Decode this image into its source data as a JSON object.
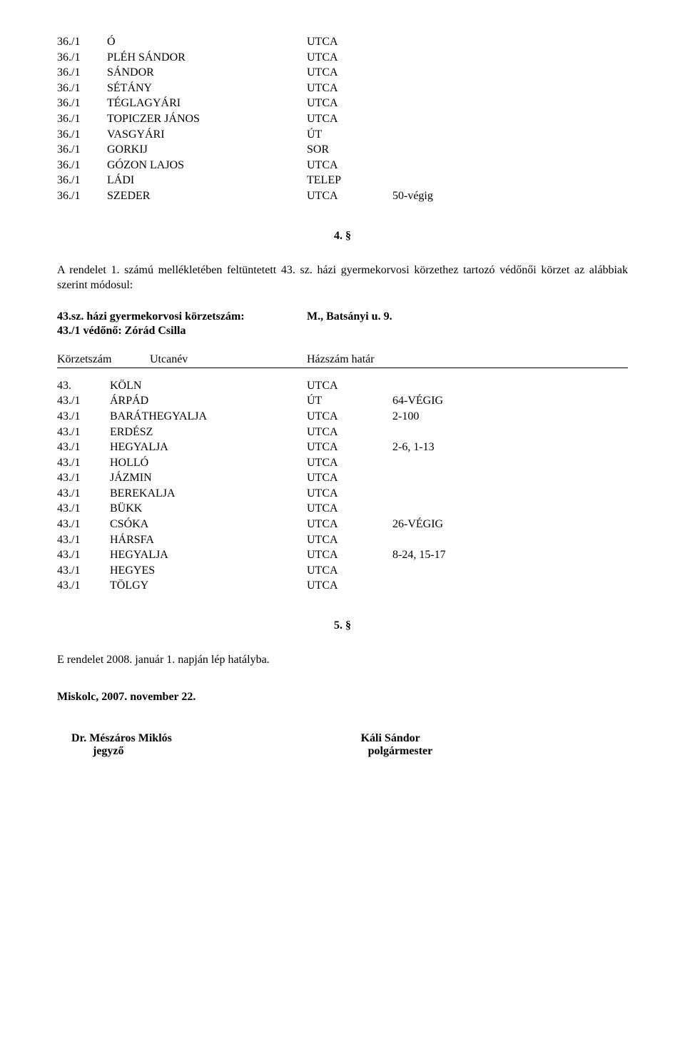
{
  "table1": {
    "rows": [
      {
        "code": "36./1",
        "name": "Ó",
        "type": "UTCA",
        "range": ""
      },
      {
        "code": "36./1",
        "name": "PLÉH SÁNDOR",
        "type": "UTCA",
        "range": ""
      },
      {
        "code": "36./1",
        "name": "SÁNDOR",
        "type": "UTCA",
        "range": ""
      },
      {
        "code": "36./1",
        "name": "SÉTÁNY",
        "type": "UTCA",
        "range": ""
      },
      {
        "code": "36./1",
        "name": "TÉGLAGYÁRI",
        "type": "UTCA",
        "range": ""
      },
      {
        "code": "36./1",
        "name": "TOPICZER JÁNOS",
        "type": "UTCA",
        "range": ""
      },
      {
        "code": "36./1",
        "name": "VASGYÁRI",
        "type": "ÚT",
        "range": ""
      },
      {
        "code": "36./1",
        "name": "GORKIJ",
        "type": "SOR",
        "range": ""
      },
      {
        "code": "36./1",
        "name": "GÓZON LAJOS",
        "type": "UTCA",
        "range": ""
      },
      {
        "code": "36./1",
        "name": "LÁDI",
        "type": "TELEP",
        "range": ""
      },
      {
        "code": "36./1",
        "name": "SZEDER",
        "type": "UTCA",
        "range": "50-végig"
      }
    ]
  },
  "section4": "4. §",
  "para4": "A rendelet 1. számú mellékletében feltüntetett 43. sz. házi gyermekorvosi körzethez tartozó védőnői körzet az alábbiak szerint módosul:",
  "bold1_left": "43.sz. házi gyermekorvosi körzetszám:",
  "bold1_right": "M., Batsányi u. 9.",
  "bold2_left": "43./1 védőnő: Zórád Csilla",
  "header": {
    "col1": "Körzetszám",
    "col2": "Utcanév",
    "col3": "Házszám határ"
  },
  "table2": {
    "rows": [
      {
        "code": "43.",
        "name": "KÖLN",
        "type": "UTCA",
        "range": ""
      },
      {
        "code": "43./1",
        "name": "ÁRPÁD",
        "type": "ÚT",
        "range": "64-VÉGIG"
      },
      {
        "code": "43./1",
        "name": "BARÁTHEGYALJA",
        "type": "UTCA",
        "range": "2-100"
      },
      {
        "code": "43./1",
        "name": "ERDÉSZ",
        "type": "UTCA",
        "range": ""
      },
      {
        "code": "43./1",
        "name": "HEGYALJA",
        "type": "UTCA",
        "range": "2-6, 1-13"
      },
      {
        "code": "43./1",
        "name": "HOLLÓ",
        "type": "UTCA",
        "range": ""
      },
      {
        "code": "43./1",
        "name": "JÁZMIN",
        "type": "UTCA",
        "range": ""
      },
      {
        "code": "43./1",
        "name": "BEREKALJA",
        "type": "UTCA",
        "range": ""
      },
      {
        "code": "43./1",
        "name": "BÜKK",
        "type": "UTCA",
        "range": ""
      },
      {
        "code": "43./1",
        "name": "CSÓKA",
        "type": "UTCA",
        "range": "26-VÉGIG"
      },
      {
        "code": "43./1",
        "name": "HÁRSFA",
        "type": "UTCA",
        "range": ""
      },
      {
        "code": "43./1",
        "name": "HEGYALJA",
        "type": "UTCA",
        "range": " 8-24, 15-17"
      },
      {
        "code": "43./1",
        "name": "HEGYES",
        "type": "UTCA",
        "range": ""
      },
      {
        "code": "43./1",
        "name": "TÖLGY",
        "type": "UTCA",
        "range": ""
      }
    ]
  },
  "section5": "5. §",
  "para5": "E rendelet 2008. január 1. napján lép hatályba.",
  "city_date": "Miskolc, 2007. november 22.",
  "sig": {
    "left_name": "Dr. Mészáros Miklós",
    "left_title": "jegyző",
    "right_name": "Káli Sándor",
    "right_title": "polgármester"
  }
}
